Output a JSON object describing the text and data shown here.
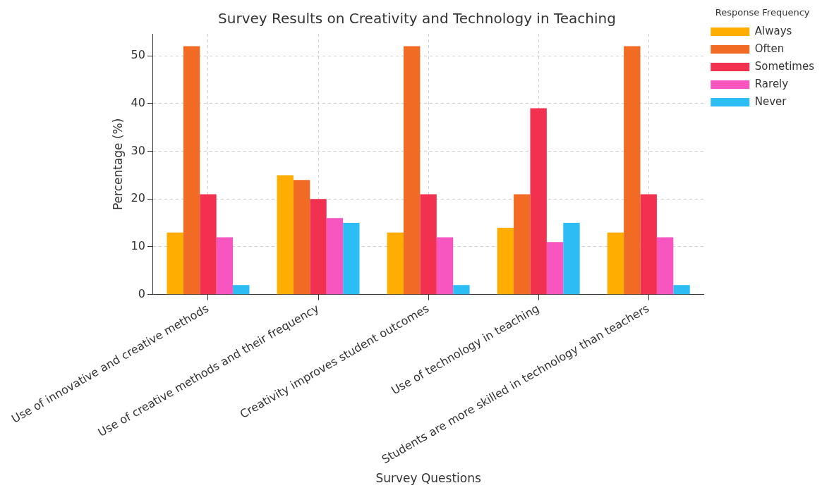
{
  "chart_data": {
    "type": "bar",
    "title": "Survey Results on Creativity and Technology in Teaching",
    "xlabel": "Survey Questions",
    "ylabel": "Percentage (%)",
    "legend_title": "Response Frequency",
    "categories": [
      "Use of innovative and creative methods",
      "Use of creative methods and their frequency",
      "Creativity improves student outcomes",
      "Use of technology in teaching",
      "Students are more skilled in technology than teachers"
    ],
    "series": [
      {
        "name": "Always",
        "color": "#ffad00",
        "values": [
          13,
          25,
          13,
          14,
          13
        ]
      },
      {
        "name": "Often",
        "color": "#f26b24",
        "values": [
          52,
          24,
          52,
          21,
          52
        ]
      },
      {
        "name": "Sometimes",
        "color": "#f2304f",
        "values": [
          21,
          20,
          21,
          39,
          21
        ]
      },
      {
        "name": "Rarely",
        "color": "#f756c0",
        "values": [
          12,
          16,
          12,
          11,
          12
        ]
      },
      {
        "name": "Never",
        "color": "#2cbdf5",
        "values": [
          2,
          15,
          2,
          15,
          2
        ]
      }
    ],
    "ylim": [
      0,
      54.6
    ],
    "yticks": [
      0,
      10,
      20,
      30,
      40,
      50
    ],
    "grid": true,
    "legend": "top right"
  }
}
